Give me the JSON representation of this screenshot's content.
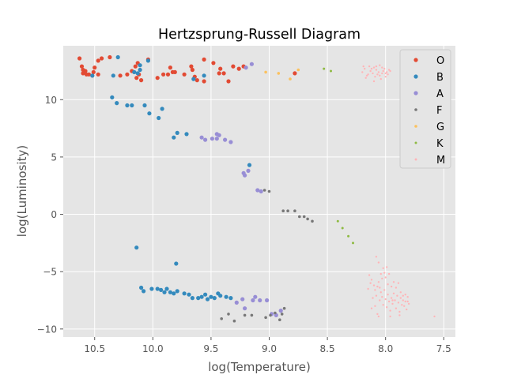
{
  "chart_data": {
    "type": "scatter",
    "title": "Hertzsprung-Russell Diagram",
    "xlabel": "log(Temperature)",
    "ylabel": "log(Luminosity)",
    "xlim": [
      10.77,
      7.4
    ],
    "ylim": [
      -10.7,
      14.7
    ],
    "x_inverted": true,
    "grid": true,
    "legend_position": "top-right",
    "x_ticks": [
      10.5,
      10.0,
      9.5,
      9.0,
      8.5,
      8.0,
      7.5
    ],
    "x_tick_labels": [
      "10.5",
      "10.0",
      "9.5",
      "9.0",
      "8.5",
      "8.0",
      "7.5"
    ],
    "y_ticks": [
      10,
      5,
      0,
      -5,
      -10
    ],
    "y_tick_labels": [
      "10",
      "5",
      "0",
      "−5",
      "−10"
    ],
    "series": [
      {
        "name": "O",
        "color": "#E24A33",
        "marker_size": 2.6,
        "points": [
          [
            10.63,
            13.6
          ],
          [
            10.61,
            12.9
          ],
          [
            10.6,
            12.3
          ],
          [
            10.58,
            12.5
          ],
          [
            10.55,
            12.2
          ],
          [
            10.52,
            12.1
          ],
          [
            10.5,
            12.8
          ],
          [
            10.47,
            13.4
          ],
          [
            10.44,
            13.6
          ],
          [
            10.37,
            13.7
          ],
          [
            10.6,
            12.6
          ],
          [
            10.57,
            12.2
          ],
          [
            10.51,
            12.4
          ],
          [
            10.47,
            12.2
          ],
          [
            10.28,
            12.1
          ],
          [
            10.22,
            12.2
          ],
          [
            10.18,
            12.5
          ],
          [
            10.15,
            12.9
          ],
          [
            10.13,
            13.2
          ],
          [
            10.14,
            11.9
          ],
          [
            10.12,
            12.2
          ],
          [
            10.1,
            11.7
          ],
          [
            10.04,
            13.5
          ],
          [
            9.96,
            11.9
          ],
          [
            9.91,
            12.2
          ],
          [
            9.87,
            12.2
          ],
          [
            9.85,
            12.8
          ],
          [
            9.83,
            12.4
          ],
          [
            9.81,
            12.4
          ],
          [
            9.73,
            12.2
          ],
          [
            9.67,
            12.9
          ],
          [
            9.66,
            12.6
          ],
          [
            9.64,
            12.0
          ],
          [
            9.62,
            11.7
          ],
          [
            9.56,
            13.5
          ],
          [
            9.56,
            11.6
          ],
          [
            9.48,
            13.2
          ],
          [
            9.43,
            12.3
          ],
          [
            9.42,
            12.7
          ],
          [
            9.39,
            12.3
          ],
          [
            9.35,
            11.6
          ],
          [
            8.78,
            12.3
          ],
          [
            9.31,
            12.9
          ],
          [
            9.26,
            12.7
          ],
          [
            9.22,
            12.9
          ]
        ]
      },
      {
        "name": "B",
        "color": "#348ABD",
        "marker_size": 2.6,
        "points": [
          [
            10.52,
            12.1
          ],
          [
            10.34,
            12.1
          ],
          [
            10.3,
            13.7
          ],
          [
            10.16,
            12.4
          ],
          [
            10.13,
            12.3
          ],
          [
            10.11,
            12.6
          ],
          [
            10.11,
            13.0
          ],
          [
            10.04,
            13.4
          ],
          [
            9.56,
            12.1
          ],
          [
            9.65,
            11.8
          ],
          [
            10.35,
            10.2
          ],
          [
            10.31,
            9.7
          ],
          [
            10.22,
            9.5
          ],
          [
            10.18,
            9.5
          ],
          [
            10.07,
            9.5
          ],
          [
            10.03,
            8.8
          ],
          [
            9.95,
            8.4
          ],
          [
            9.92,
            9.2
          ],
          [
            9.79,
            7.1
          ],
          [
            9.82,
            6.7
          ],
          [
            9.71,
            7.0
          ],
          [
            9.17,
            4.3
          ],
          [
            10.14,
            -2.9
          ],
          [
            9.8,
            -4.3
          ],
          [
            10.1,
            -6.4
          ],
          [
            10.08,
            -6.7
          ],
          [
            10.01,
            -6.5
          ],
          [
            9.96,
            -6.5
          ],
          [
            9.93,
            -6.6
          ],
          [
            9.9,
            -6.8
          ],
          [
            9.88,
            -6.5
          ],
          [
            9.85,
            -6.8
          ],
          [
            9.82,
            -6.9
          ],
          [
            9.79,
            -6.7
          ],
          [
            9.73,
            -6.9
          ],
          [
            9.69,
            -7.0
          ],
          [
            9.66,
            -7.3
          ],
          [
            9.61,
            -7.3
          ],
          [
            9.58,
            -7.2
          ],
          [
            9.55,
            -7.0
          ],
          [
            9.53,
            -7.4
          ],
          [
            9.5,
            -7.2
          ],
          [
            9.47,
            -7.3
          ],
          [
            9.44,
            -6.9
          ],
          [
            9.42,
            -7.1
          ],
          [
            9.37,
            -7.2
          ],
          [
            9.33,
            -7.3
          ]
        ]
      },
      {
        "name": "A",
        "color": "#988ED5",
        "marker_size": 2.6,
        "points": [
          [
            9.15,
            13.1
          ],
          [
            9.2,
            12.8
          ],
          [
            9.58,
            6.7
          ],
          [
            9.55,
            6.5
          ],
          [
            9.49,
            6.6
          ],
          [
            9.45,
            6.6
          ],
          [
            9.38,
            6.5
          ],
          [
            9.33,
            6.3
          ],
          [
            9.22,
            3.6
          ],
          [
            9.21,
            3.4
          ],
          [
            9.18,
            3.8
          ],
          [
            9.1,
            2.1
          ],
          [
            9.07,
            2.0
          ],
          [
            9.28,
            -7.7
          ],
          [
            9.23,
            -7.4
          ],
          [
            9.21,
            -8.2
          ],
          [
            9.14,
            -7.5
          ],
          [
            9.12,
            -7.2
          ],
          [
            9.08,
            -7.5
          ],
          [
            9.02,
            -7.5
          ],
          [
            8.98,
            -8.7
          ],
          [
            8.94,
            -8.8
          ],
          [
            8.9,
            -8.4
          ],
          [
            9.45,
            7.0
          ],
          [
            9.43,
            6.9
          ]
        ]
      },
      {
        "name": "F",
        "color": "#777777",
        "marker_size": 1.8,
        "points": [
          [
            9.04,
            2.1
          ],
          [
            9.0,
            2.0
          ],
          [
            8.88,
            0.3
          ],
          [
            8.84,
            0.3
          ],
          [
            8.78,
            0.3
          ],
          [
            8.74,
            -0.2
          ],
          [
            8.7,
            -0.2
          ],
          [
            8.67,
            -0.4
          ],
          [
            8.63,
            -0.6
          ],
          [
            9.41,
            -9.1
          ],
          [
            9.35,
            -8.7
          ],
          [
            9.3,
            -9.3
          ],
          [
            9.21,
            -8.8
          ],
          [
            9.15,
            -8.8
          ],
          [
            9.03,
            -9.0
          ],
          [
            8.99,
            -8.8
          ],
          [
            8.95,
            -8.6
          ],
          [
            8.91,
            -9.2
          ],
          [
            8.87,
            -8.2
          ],
          [
            8.89,
            -8.7
          ]
        ]
      },
      {
        "name": "G",
        "color": "#FBC15E",
        "marker_size": 1.8,
        "points": [
          [
            9.03,
            12.4
          ],
          [
            8.92,
            12.3
          ],
          [
            8.82,
            11.8
          ],
          [
            8.75,
            12.6
          ]
        ]
      },
      {
        "name": "K",
        "color": "#8EBA42",
        "marker_size": 1.5,
        "points": [
          [
            8.53,
            12.7
          ],
          [
            8.47,
            12.5
          ],
          [
            8.41,
            -0.6
          ],
          [
            8.37,
            -1.2
          ],
          [
            8.32,
            -1.9
          ],
          [
            8.28,
            -2.5
          ]
        ]
      },
      {
        "name": "M",
        "color": "#FFB5B8",
        "marker_size": 1.2,
        "points": [
          [
            8.2,
            12.4
          ],
          [
            8.18,
            12.7
          ],
          [
            8.16,
            12.1
          ],
          [
            8.14,
            12.9
          ],
          [
            8.13,
            12.5
          ],
          [
            8.11,
            12.3
          ],
          [
            8.1,
            12.8
          ],
          [
            8.09,
            12.0
          ],
          [
            8.08,
            12.6
          ],
          [
            8.07,
            12.2
          ],
          [
            8.06,
            12.4
          ],
          [
            8.05,
            13.0
          ],
          [
            8.04,
            11.8
          ],
          [
            8.03,
            12.3
          ],
          [
            8.02,
            12.5
          ],
          [
            8.01,
            12.7
          ],
          [
            8.0,
            12.0
          ],
          [
            7.99,
            12.4
          ],
          [
            7.98,
            12.2
          ],
          [
            7.97,
            12.6
          ],
          [
            8.19,
            12.9
          ],
          [
            8.17,
            11.9
          ],
          [
            8.15,
            12.2
          ],
          [
            8.12,
            12.7
          ],
          [
            8.1,
            11.6
          ],
          [
            8.08,
            12.9
          ],
          [
            8.05,
            12.1
          ],
          [
            8.03,
            12.8
          ],
          [
            8.0,
            12.3
          ],
          [
            7.96,
            12.5
          ],
          [
            8.14,
            -5.3
          ],
          [
            8.12,
            -5.7
          ],
          [
            8.1,
            -6.2
          ],
          [
            8.09,
            -6.6
          ],
          [
            8.08,
            -7.1
          ],
          [
            8.07,
            -6.3
          ],
          [
            8.06,
            -5.9
          ],
          [
            8.05,
            -7.5
          ],
          [
            8.04,
            -6.8
          ],
          [
            8.03,
            -7.2
          ],
          [
            8.02,
            -7.9
          ],
          [
            8.01,
            -6.6
          ],
          [
            8.0,
            -7.4
          ],
          [
            7.99,
            -8.1
          ],
          [
            7.98,
            -7.0
          ],
          [
            7.97,
            -7.6
          ],
          [
            7.96,
            -8.4
          ],
          [
            7.95,
            -7.3
          ],
          [
            7.94,
            -7.8
          ],
          [
            7.93,
            -6.9
          ],
          [
            7.92,
            -7.5
          ],
          [
            7.91,
            -8.2
          ],
          [
            7.9,
            -7.1
          ],
          [
            7.89,
            -7.7
          ],
          [
            7.88,
            -8.5
          ],
          [
            7.87,
            -7.3
          ],
          [
            7.86,
            -7.9
          ],
          [
            7.85,
            -7.5
          ],
          [
            7.84,
            -8.0
          ],
          [
            7.83,
            -7.6
          ],
          [
            7.82,
            -8.3
          ],
          [
            7.81,
            -7.2
          ],
          [
            7.8,
            -7.8
          ],
          [
            8.15,
            -6.5
          ],
          [
            8.13,
            -6.0
          ],
          [
            8.11,
            -7.3
          ],
          [
            8.09,
            -8.0
          ],
          [
            8.07,
            -8.7
          ],
          [
            8.05,
            -6.4
          ],
          [
            8.03,
            -5.6
          ],
          [
            8.01,
            -5.1
          ],
          [
            7.99,
            -4.6
          ],
          [
            8.02,
            -4.7
          ],
          [
            8.0,
            -5.5
          ],
          [
            7.98,
            -6.1
          ],
          [
            7.97,
            -5.2
          ],
          [
            7.95,
            -6.3
          ],
          [
            7.93,
            -5.9
          ],
          [
            7.91,
            -6.4
          ],
          [
            7.89,
            -6.0
          ],
          [
            7.87,
            -6.8
          ],
          [
            7.85,
            -7.1
          ],
          [
            7.83,
            -7.0
          ],
          [
            7.81,
            -7.6
          ],
          [
            8.06,
            -8.9
          ],
          [
            7.96,
            -8.9
          ],
          [
            7.88,
            -8.8
          ],
          [
            8.12,
            -8.2
          ],
          [
            8.04,
            -5.2
          ],
          [
            7.94,
            -7.5
          ],
          [
            7.58,
            -8.9
          ],
          [
            8.08,
            -3.7
          ],
          [
            8.06,
            -4.2
          ]
        ]
      }
    ]
  }
}
